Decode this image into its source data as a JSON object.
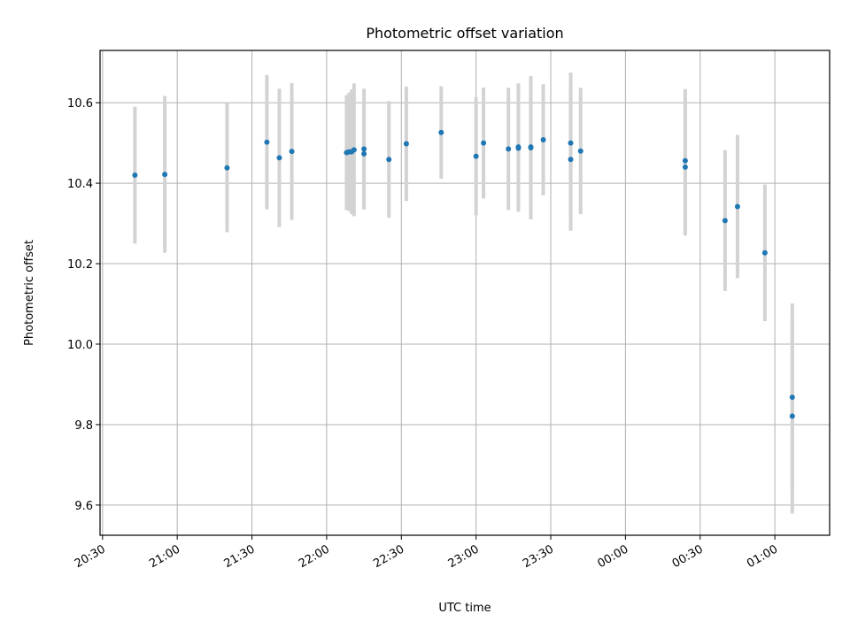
{
  "chart_data": {
    "type": "scatter",
    "title": "Photometric offset variation",
    "xlabel": "UTC time",
    "ylabel": "Photometric offset",
    "x_ticks": [
      "20:30",
      "21:00",
      "21:30",
      "22:00",
      "22:30",
      "23:00",
      "23:30",
      "00:00",
      "00:30",
      "01:00"
    ],
    "y_ticks": [
      "9.6",
      "9.8",
      "10.0",
      "10.2",
      "10.4",
      "10.6"
    ],
    "y_tick_values": [
      9.6,
      9.8,
      10.0,
      10.2,
      10.4,
      10.6
    ],
    "xlim": [
      "20:29",
      "01:22"
    ],
    "ylim": [
      9.525,
      10.73
    ],
    "grid": true,
    "colors": {
      "point": "#1f77b4",
      "errorbar": "#d3d3d3"
    },
    "points": [
      {
        "t": "20:43",
        "y": 10.42,
        "err": 0.17
      },
      {
        "t": "20:55",
        "y": 10.422,
        "err": 0.195
      },
      {
        "t": "21:20",
        "y": 10.438,
        "err": 0.16
      },
      {
        "t": "21:36",
        "y": 10.502,
        "err": 0.167
      },
      {
        "t": "21:41",
        "y": 10.463,
        "err": 0.172
      },
      {
        "t": "21:46",
        "y": 10.479,
        "err": 0.17
      },
      {
        "t": "22:08",
        "y": 10.476,
        "err": 0.143
      },
      {
        "t": "22:09",
        "y": 10.478,
        "err": 0.147
      },
      {
        "t": "22:10",
        "y": 10.478,
        "err": 0.155
      },
      {
        "t": "22:11",
        "y": 10.483,
        "err": 0.165
      },
      {
        "t": "22:15",
        "y": 10.485,
        "err": 0.15
      },
      {
        "t": "22:15",
        "y": 10.473,
        "err": 0.138
      },
      {
        "t": "22:25",
        "y": 10.459,
        "err": 0.145
      },
      {
        "t": "22:32",
        "y": 10.498,
        "err": 0.142
      },
      {
        "t": "22:46",
        "y": 10.526,
        "err": 0.115
      },
      {
        "t": "23:00",
        "y": 10.467,
        "err": 0.147
      },
      {
        "t": "23:03",
        "y": 10.5,
        "err": 0.138
      },
      {
        "t": "23:13",
        "y": 10.485,
        "err": 0.152
      },
      {
        "t": "23:17",
        "y": 10.49,
        "err": 0.158
      },
      {
        "t": "23:17",
        "y": 10.487,
        "err": 0.158
      },
      {
        "t": "23:22",
        "y": 10.488,
        "err": 0.178
      },
      {
        "t": "23:22",
        "y": 10.49,
        "err": 0.16
      },
      {
        "t": "23:27",
        "y": 10.508,
        "err": 0.138
      },
      {
        "t": "23:38",
        "y": 10.5,
        "err": 0.175
      },
      {
        "t": "23:38",
        "y": 10.459,
        "err": 0.177
      },
      {
        "t": "23:42",
        "y": 10.48,
        "err": 0.157
      },
      {
        "t": "00:24",
        "y": 10.456,
        "err": 0.178
      },
      {
        "t": "00:24",
        "y": 10.44,
        "err": 0.17
      },
      {
        "t": "00:40",
        "y": 10.307,
        "err": 0.175
      },
      {
        "t": "00:45",
        "y": 10.342,
        "err": 0.178
      },
      {
        "t": "00:56",
        "y": 10.227,
        "err": 0.17
      },
      {
        "t": "01:07",
        "y": 9.868,
        "err": 0.233
      },
      {
        "t": "01:07",
        "y": 9.821,
        "err": 0.242
      }
    ]
  }
}
